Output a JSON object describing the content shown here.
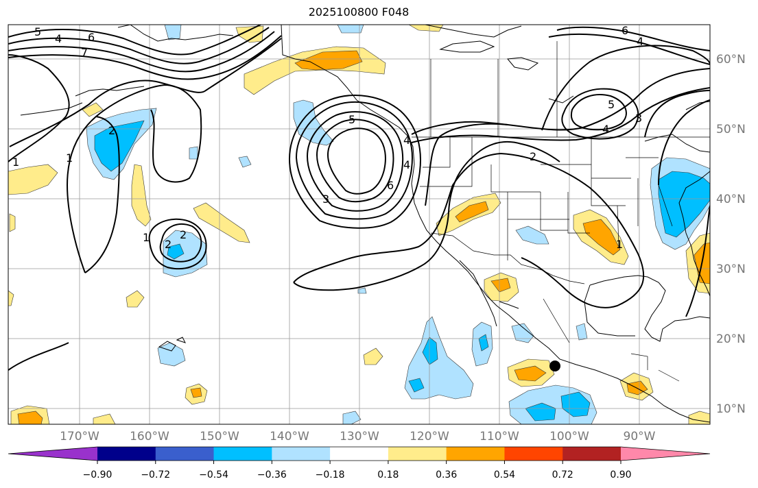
{
  "title": "2025100800 F048",
  "map": {
    "longitude_labels": [
      "170°W",
      "160°W",
      "150°W",
      "140°W",
      "130°W",
      "120°W",
      "110°W",
      "100°W",
      "90°W"
    ],
    "latitude_labels": [
      "60°N",
      "50°N",
      "40°N",
      "30°N",
      "20°N",
      "10°N"
    ],
    "contour_labels": [
      "5",
      "4",
      "6",
      "7",
      "2",
      "1",
      "1",
      "2",
      "1",
      "2",
      "3",
      "6",
      "4",
      "5",
      "4",
      "2",
      "1",
      "6",
      "4",
      "5",
      "4",
      "3"
    ],
    "marker": "filled black circle"
  },
  "colorbar": {
    "ticks": [
      "−0.90",
      "−0.72",
      "−0.54",
      "−0.36",
      "−0.18",
      "0.18",
      "0.36",
      "0.54",
      "0.72",
      "0.90"
    ],
    "colors": [
      "#9932cc",
      "#00008b",
      "#3a5fcd",
      "#00bfff",
      "#b0e2ff",
      "#ffffff",
      "#ffec8b",
      "#ffa500",
      "#ff4500",
      "#b22222",
      "#ff88aa"
    ]
  }
}
